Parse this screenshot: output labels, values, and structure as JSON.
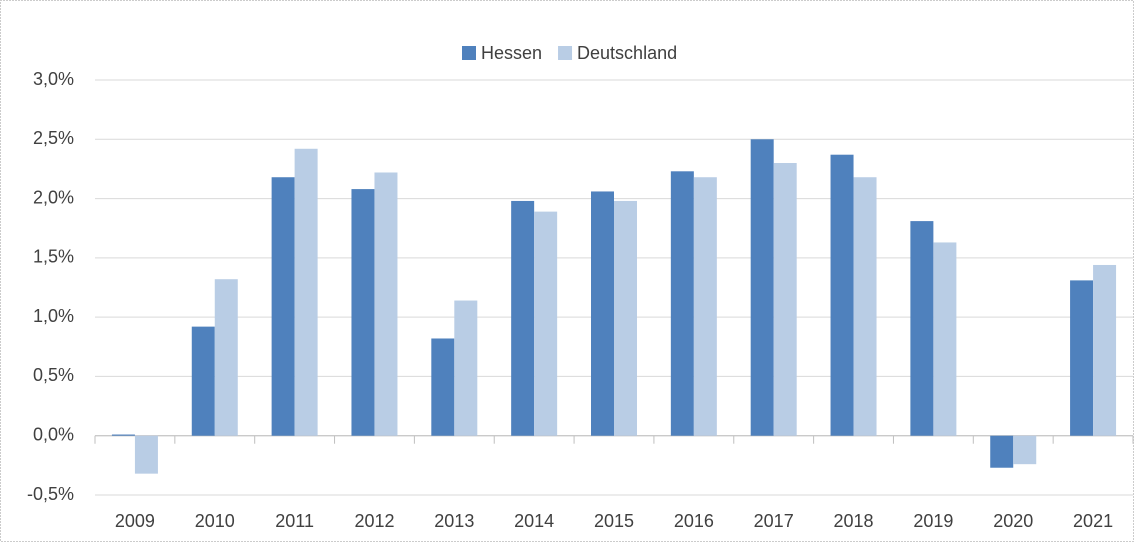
{
  "chart_data": {
    "type": "bar",
    "categories": [
      "2009",
      "2010",
      "2011",
      "2012",
      "2013",
      "2014",
      "2015",
      "2016",
      "2017",
      "2018",
      "2019",
      "2020",
      "2021"
    ],
    "series": [
      {
        "name": "Hessen",
        "color": "#4f81bd",
        "values": [
          0.01,
          0.92,
          2.18,
          2.08,
          0.82,
          1.98,
          2.06,
          2.23,
          2.5,
          2.37,
          1.81,
          -0.27,
          1.31
        ]
      },
      {
        "name": "Deutschland",
        "color": "#b9cde5",
        "values": [
          -0.32,
          1.32,
          2.42,
          2.22,
          1.14,
          1.89,
          1.98,
          2.18,
          2.3,
          2.18,
          1.63,
          -0.24,
          1.44
        ]
      }
    ],
    "ylim": [
      -0.5,
      3.0
    ],
    "yticks": [
      {
        "value": -0.5,
        "label": "-0,5%"
      },
      {
        "value": 0,
        "label": "0,0%"
      },
      {
        "value": 0.5,
        "label": "0,5%"
      },
      {
        "value": 1.0,
        "label": "1,0%"
      },
      {
        "value": 1.5,
        "label": "1,5%"
      },
      {
        "value": 2.0,
        "label": "2,0%"
      },
      {
        "value": 2.5,
        "label": "2,5%"
      },
      {
        "value": 3.0,
        "label": "3,0%"
      }
    ],
    "grid": true,
    "legend": "top"
  }
}
